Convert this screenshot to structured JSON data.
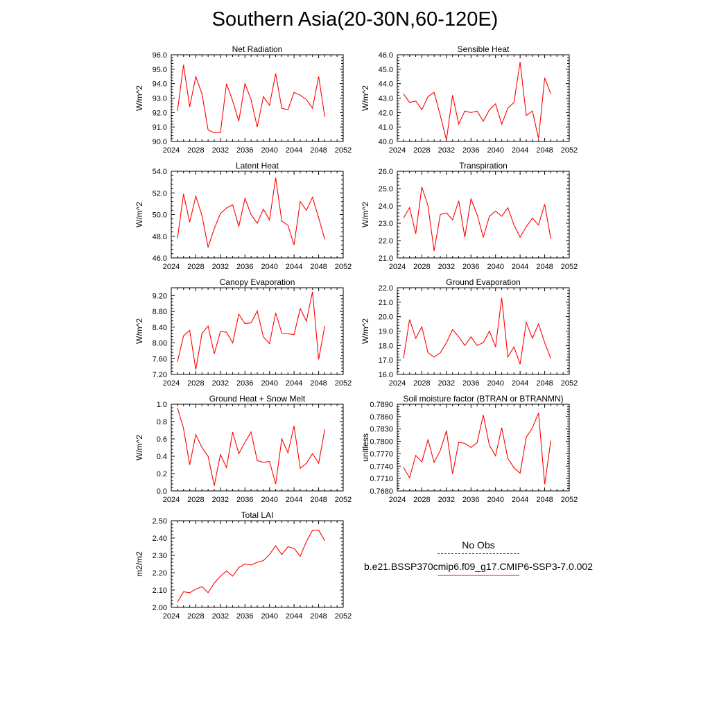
{
  "page": {
    "title": "Southern Asia(20-30N,60-120E)"
  },
  "legend": {
    "obs_label": "No Obs",
    "obs_color": "#3333aa",
    "model_label": "b.e21.BSSP370cmip6.f09_g17.CMIP6-SSP3-7.0.002",
    "model_color": "#ff0000"
  },
  "chart_data": [
    {
      "type": "line",
      "title": "Net Radiation",
      "ylabel": "W/m^2",
      "xlabel": "",
      "xlim": [
        2024,
        2052
      ],
      "xticks": [
        "2024",
        "2028",
        "2032",
        "2036",
        "2040",
        "2044",
        "2048",
        "2052"
      ],
      "ylim": [
        90,
        96
      ],
      "yticks": [
        "90.0",
        "91.0",
        "92.0",
        "93.0",
        "94.0",
        "95.0",
        "96.0"
      ],
      "series": [
        {
          "color": "#ff0000",
          "x": [
            2025,
            2026,
            2027,
            2028,
            2029,
            2030,
            2031,
            2032,
            2033,
            2034,
            2035,
            2036,
            2037,
            2038,
            2039,
            2040,
            2041,
            2042,
            2043,
            2044,
            2045,
            2046,
            2047,
            2048,
            2049
          ],
          "y": [
            92.1,
            95.3,
            92.4,
            94.5,
            93.3,
            90.8,
            90.6,
            90.6,
            94.0,
            92.8,
            91.4,
            94.0,
            92.9,
            91.0,
            93.1,
            92.5,
            94.7,
            92.3,
            92.2,
            93.4,
            93.2,
            92.9,
            92.3,
            94.5,
            91.7
          ]
        }
      ]
    },
    {
      "type": "line",
      "title": "Sensible Heat",
      "ylabel": "W/m^2",
      "xlabel": "",
      "xlim": [
        2024,
        2052
      ],
      "xticks": [
        "2024",
        "2028",
        "2032",
        "2036",
        "2040",
        "2044",
        "2048",
        "2052"
      ],
      "ylim": [
        40,
        46
      ],
      "yticks": [
        "40.0",
        "41.0",
        "42.0",
        "43.0",
        "44.0",
        "45.0",
        "46.0"
      ],
      "series": [
        {
          "color": "#ff0000",
          "x": [
            2025,
            2026,
            2027,
            2028,
            2029,
            2030,
            2031,
            2032,
            2033,
            2034,
            2035,
            2036,
            2037,
            2038,
            2039,
            2040,
            2041,
            2042,
            2043,
            2044,
            2045,
            2046,
            2047,
            2048,
            2049
          ],
          "y": [
            43.3,
            42.7,
            42.8,
            42.2,
            43.1,
            43.4,
            41.8,
            40.1,
            43.2,
            41.2,
            42.1,
            42.0,
            42.1,
            41.4,
            42.2,
            42.6,
            41.2,
            42.3,
            42.7,
            45.5,
            41.8,
            42.1,
            40.2,
            44.4,
            43.3
          ]
        }
      ]
    },
    {
      "type": "line",
      "title": "Latent Heat",
      "ylabel": "W/m^2",
      "xlabel": "",
      "xlim": [
        2024,
        2052
      ],
      "xticks": [
        "2024",
        "2028",
        "2032",
        "2036",
        "2040",
        "2044",
        "2048",
        "2052"
      ],
      "ylim": [
        46,
        54
      ],
      "yticks": [
        "46.0",
        "48.0",
        "50.0",
        "52.0",
        "54.0"
      ],
      "series": [
        {
          "color": "#ff0000",
          "x": [
            2025,
            2026,
            2027,
            2028,
            2029,
            2030,
            2031,
            2032,
            2033,
            2034,
            2035,
            2036,
            2037,
            2038,
            2039,
            2040,
            2041,
            2042,
            2043,
            2044,
            2045,
            2046,
            2047,
            2048,
            2049
          ],
          "y": [
            47.8,
            51.9,
            49.3,
            51.7,
            49.9,
            47.0,
            48.7,
            50.1,
            50.6,
            50.9,
            48.9,
            51.5,
            50.0,
            49.2,
            50.5,
            49.5,
            53.4,
            49.4,
            49.0,
            47.2,
            51.2,
            50.4,
            51.6,
            49.7,
            47.7
          ]
        }
      ]
    },
    {
      "type": "line",
      "title": "Transpiration",
      "ylabel": "W/m^2",
      "xlabel": "",
      "xlim": [
        2024,
        2052
      ],
      "xticks": [
        "2024",
        "2028",
        "2032",
        "2036",
        "2040",
        "2044",
        "2048",
        "2052"
      ],
      "ylim": [
        21,
        26
      ],
      "yticks": [
        "21.0",
        "22.0",
        "23.0",
        "24.0",
        "25.0",
        "26.0"
      ],
      "series": [
        {
          "color": "#ff0000",
          "x": [
            2025,
            2026,
            2027,
            2028,
            2029,
            2030,
            2031,
            2032,
            2033,
            2034,
            2035,
            2036,
            2037,
            2038,
            2039,
            2040,
            2041,
            2042,
            2043,
            2044,
            2045,
            2046,
            2047,
            2048,
            2049
          ],
          "y": [
            23.3,
            23.9,
            22.4,
            25.1,
            24.0,
            21.4,
            23.5,
            23.6,
            23.2,
            24.3,
            22.2,
            24.4,
            23.5,
            22.2,
            23.4,
            23.7,
            23.4,
            23.9,
            22.9,
            22.2,
            22.8,
            23.3,
            22.9,
            24.1,
            22.1
          ]
        }
      ]
    },
    {
      "type": "line",
      "title": "Canopy Evaporation",
      "ylabel": "W/m^2",
      "xlabel": "",
      "xlim": [
        2024,
        2052
      ],
      "xticks": [
        "2024",
        "2028",
        "2032",
        "2036",
        "2040",
        "2044",
        "2048",
        "2052"
      ],
      "ylim": [
        7.2,
        9.4
      ],
      "yticks": [
        "7.20",
        "7.60",
        "8.00",
        "8.40",
        "8.80",
        "9.20"
      ],
      "series": [
        {
          "color": "#ff0000",
          "x": [
            2025,
            2026,
            2027,
            2028,
            2029,
            2030,
            2031,
            2032,
            2033,
            2034,
            2035,
            2036,
            2037,
            2038,
            2039,
            2040,
            2041,
            2042,
            2043,
            2044,
            2045,
            2046,
            2047,
            2048,
            2049
          ],
          "y": [
            7.52,
            8.18,
            8.32,
            7.32,
            8.24,
            8.43,
            7.72,
            8.29,
            8.27,
            8.0,
            8.73,
            8.49,
            8.51,
            8.81,
            8.15,
            7.98,
            8.76,
            8.25,
            8.23,
            8.21,
            8.87,
            8.55,
            9.3,
            7.58,
            8.43
          ]
        }
      ]
    },
    {
      "type": "line",
      "title": "Ground Evaporation",
      "ylabel": "W/m^2",
      "xlabel": "",
      "xlim": [
        2024,
        2052
      ],
      "xticks": [
        "2024",
        "2028",
        "2032",
        "2036",
        "2040",
        "2044",
        "2048",
        "2052"
      ],
      "ylim": [
        16,
        22
      ],
      "yticks": [
        "16.0",
        "17.0",
        "18.0",
        "19.0",
        "20.0",
        "21.0",
        "22.0"
      ],
      "series": [
        {
          "color": "#ff0000",
          "x": [
            2025,
            2026,
            2027,
            2028,
            2029,
            2030,
            2031,
            2032,
            2033,
            2034,
            2035,
            2036,
            2037,
            2038,
            2039,
            2040,
            2041,
            2042,
            2043,
            2044,
            2045,
            2046,
            2047,
            2048,
            2049
          ],
          "y": [
            17.1,
            19.8,
            18.5,
            19.3,
            17.5,
            17.2,
            17.5,
            18.2,
            19.1,
            18.6,
            18.0,
            18.6,
            18.0,
            18.2,
            19.0,
            17.9,
            21.3,
            17.2,
            17.9,
            16.7,
            19.6,
            18.5,
            19.5,
            18.2,
            17.1
          ]
        }
      ]
    },
    {
      "type": "line",
      "title": "Ground Heat + Snow Melt",
      "ylabel": "W/m^2",
      "xlabel": "",
      "xlim": [
        2024,
        2052
      ],
      "xticks": [
        "2024",
        "2028",
        "2032",
        "2036",
        "2040",
        "2044",
        "2048",
        "2052"
      ],
      "ylim": [
        0,
        1
      ],
      "yticks": [
        "0.0",
        "0.2",
        "0.4",
        "0.6",
        "0.8",
        "1.0"
      ],
      "series": [
        {
          "color": "#ff0000",
          "x": [
            2025,
            2026,
            2027,
            2028,
            2029,
            2030,
            2031,
            2032,
            2033,
            2034,
            2035,
            2036,
            2037,
            2038,
            2039,
            2040,
            2041,
            2042,
            2043,
            2044,
            2045,
            2046,
            2047,
            2048,
            2049
          ],
          "y": [
            0.96,
            0.72,
            0.3,
            0.65,
            0.5,
            0.4,
            0.06,
            0.42,
            0.27,
            0.68,
            0.43,
            0.56,
            0.68,
            0.35,
            0.33,
            0.34,
            0.08,
            0.6,
            0.44,
            0.75,
            0.26,
            0.32,
            0.43,
            0.32,
            0.71
          ]
        }
      ]
    },
    {
      "type": "line",
      "title": "Soil moisture factor (BTRAN or BTRANMN)",
      "ylabel": "unitless",
      "xlabel": "",
      "xlim": [
        2024,
        2052
      ],
      "xticks": [
        "2024",
        "2028",
        "2032",
        "2036",
        "2040",
        "2044",
        "2048",
        "2052"
      ],
      "ylim": [
        0.768,
        0.789
      ],
      "yticks": [
        "0.7680",
        "0.7710",
        "0.7740",
        "0.7770",
        "0.7800",
        "0.7830",
        "0.7860",
        "0.7890"
      ],
      "series": [
        {
          "color": "#ff0000",
          "x": [
            2025,
            2026,
            2027,
            2028,
            2029,
            2030,
            2031,
            2032,
            2033,
            2034,
            2035,
            2036,
            2037,
            2038,
            2039,
            2040,
            2041,
            2042,
            2043,
            2044,
            2045,
            2046,
            2047,
            2048,
            2049
          ],
          "y": [
            0.7737,
            0.7712,
            0.7766,
            0.775,
            0.7804,
            0.7749,
            0.7778,
            0.7826,
            0.7721,
            0.7798,
            0.7795,
            0.7785,
            0.7797,
            0.7864,
            0.779,
            0.7765,
            0.7833,
            0.7759,
            0.7736,
            0.7723,
            0.781,
            0.7833,
            0.7869,
            0.7696,
            0.7802
          ]
        }
      ]
    },
    {
      "type": "line",
      "title": "Total LAI",
      "ylabel": "m2/m2",
      "xlabel": "",
      "xlim": [
        2024,
        2052
      ],
      "xticks": [
        "2024",
        "2028",
        "2032",
        "2036",
        "2040",
        "2044",
        "2048",
        "2052"
      ],
      "ylim": [
        2.0,
        2.5
      ],
      "yticks": [
        "2.00",
        "2.10",
        "2.20",
        "2.30",
        "2.40",
        "2.50"
      ],
      "series": [
        {
          "color": "#ff0000",
          "x": [
            2025,
            2026,
            2027,
            2028,
            2029,
            2030,
            2031,
            2032,
            2033,
            2034,
            2035,
            2036,
            2037,
            2038,
            2039,
            2040,
            2041,
            2042,
            2043,
            2044,
            2045,
            2046,
            2047,
            2048,
            2049
          ],
          "y": [
            2.03,
            2.09,
            2.085,
            2.105,
            2.12,
            2.085,
            2.14,
            2.18,
            2.21,
            2.18,
            2.23,
            2.25,
            2.245,
            2.26,
            2.27,
            2.305,
            2.355,
            2.305,
            2.35,
            2.34,
            2.295,
            2.38,
            2.445,
            2.445,
            2.385
          ]
        }
      ]
    }
  ]
}
